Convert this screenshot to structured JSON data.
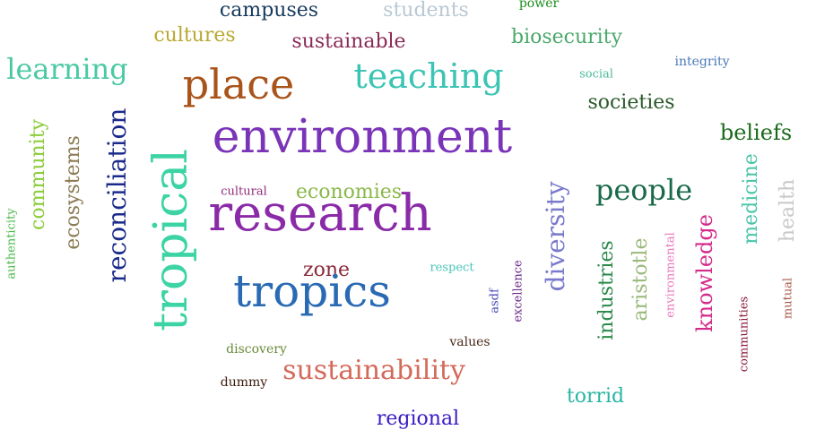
{
  "words": [
    {
      "text": "campuses",
      "color": "#163a5c"
    },
    {
      "text": "students",
      "color": "#b8c8d4"
    },
    {
      "text": "power",
      "color": "#1a8c1a"
    },
    {
      "text": "cultures",
      "color": "#b8a832"
    },
    {
      "text": "sustainable",
      "color": "#8a2a55"
    },
    {
      "text": "biosecurity",
      "color": "#4aa86a"
    },
    {
      "text": "learning",
      "color": "#4bc9a4"
    },
    {
      "text": "place",
      "color": "#a8541a"
    },
    {
      "text": "teaching",
      "color": "#3cc4b4"
    },
    {
      "text": "integrity",
      "color": "#4a78b8"
    },
    {
      "text": "social",
      "color": "#4ab89a"
    },
    {
      "text": "societies",
      "color": "#2a5a2a"
    },
    {
      "text": "environment",
      "color": "#7a34b8"
    },
    {
      "text": "beliefs",
      "color": "#1a6a1a"
    },
    {
      "text": "community",
      "color": "#8acc3a"
    },
    {
      "text": "ecosystems",
      "color": "#8a7a52"
    },
    {
      "text": "reconciliation",
      "color": "#1a2a8a"
    },
    {
      "text": "tropical",
      "color": "#3cd4a4"
    },
    {
      "text": "cultural",
      "color": "#8a2a7a"
    },
    {
      "text": "economies",
      "color": "#8ab84a"
    },
    {
      "text": "research",
      "color": "#8a2aa8"
    },
    {
      "text": "people",
      "color": "#1a6a4a"
    },
    {
      "text": "diversity",
      "color": "#7a7acc"
    },
    {
      "text": "medicine",
      "color": "#4ac4a8"
    },
    {
      "text": "health",
      "color": "#c8c8c8"
    },
    {
      "text": "authenticity",
      "color": "#4ab84a"
    },
    {
      "text": "zone",
      "color": "#8a2a3a"
    },
    {
      "text": "respect",
      "color": "#4ac4b8"
    },
    {
      "text": "tropics",
      "color": "#2a6ab4"
    },
    {
      "text": "industries",
      "color": "#2a8a4a"
    },
    {
      "text": "aristotle",
      "color": "#9ab87a"
    },
    {
      "text": "environmental",
      "color": "#e87ab8"
    },
    {
      "text": "knowledge",
      "color": "#d42a8a"
    },
    {
      "text": "asdf",
      "color": "#4a4ab8"
    },
    {
      "text": "excellence",
      "color": "#6a2a8a"
    },
    {
      "text": "mutual",
      "color": "#a85a4a"
    },
    {
      "text": "communities",
      "color": "#8a1a3a"
    },
    {
      "text": "discovery",
      "color": "#6a8a3a"
    },
    {
      "text": "values",
      "color": "#4a2a1a"
    },
    {
      "text": "sustainability",
      "color": "#d46a5a"
    },
    {
      "text": "dummy",
      "color": "#3a1a0a"
    },
    {
      "text": "torrid",
      "color": "#2ab4a4"
    },
    {
      "text": "regional",
      "color": "#3a1ac4"
    }
  ]
}
